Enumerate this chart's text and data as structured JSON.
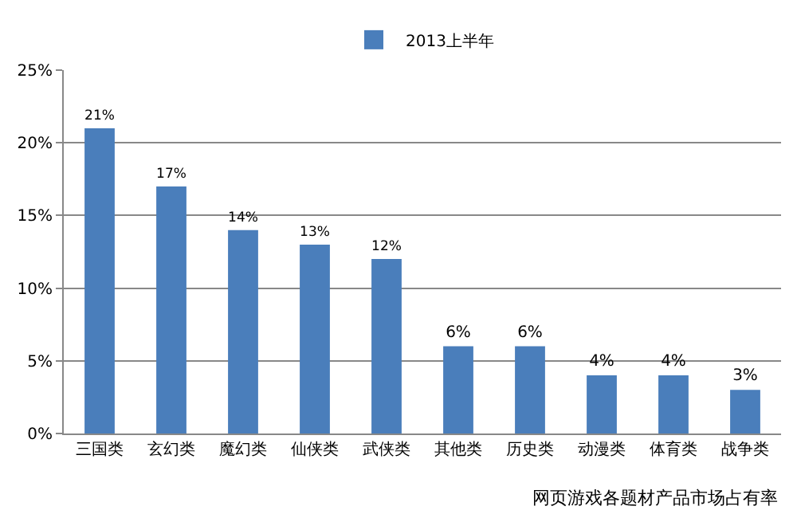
{
  "chart_data": {
    "type": "bar",
    "categories": [
      "三国类",
      "玄幻类",
      "魔幻类",
      "仙侠类",
      "武侠类",
      "其他类",
      "历史类",
      "动漫类",
      "体育类",
      "战争类"
    ],
    "series": [
      {
        "name": "2013上半年",
        "color": "#4a7ebb",
        "values": [
          21,
          17,
          14,
          13,
          12,
          6,
          6,
          4,
          4,
          3
        ],
        "value_labels": [
          "21%",
          "17%",
          "14%",
          "13%",
          "12%",
          "6%",
          "6%",
          "4%",
          "4%",
          "3%"
        ]
      }
    ],
    "ylim": [
      0,
      25
    ],
    "yticks": [
      {
        "value": 0,
        "label": "0%"
      },
      {
        "value": 5,
        "label": "5%"
      },
      {
        "value": 10,
        "label": "10%"
      },
      {
        "value": 15,
        "label": "15%"
      },
      {
        "value": 20,
        "label": "20%"
      },
      {
        "value": 25,
        "label": "25%"
      }
    ],
    "grid": "y",
    "legend": "top",
    "annotations": [
      "网页游戏各题材产品市场占有率"
    ]
  }
}
